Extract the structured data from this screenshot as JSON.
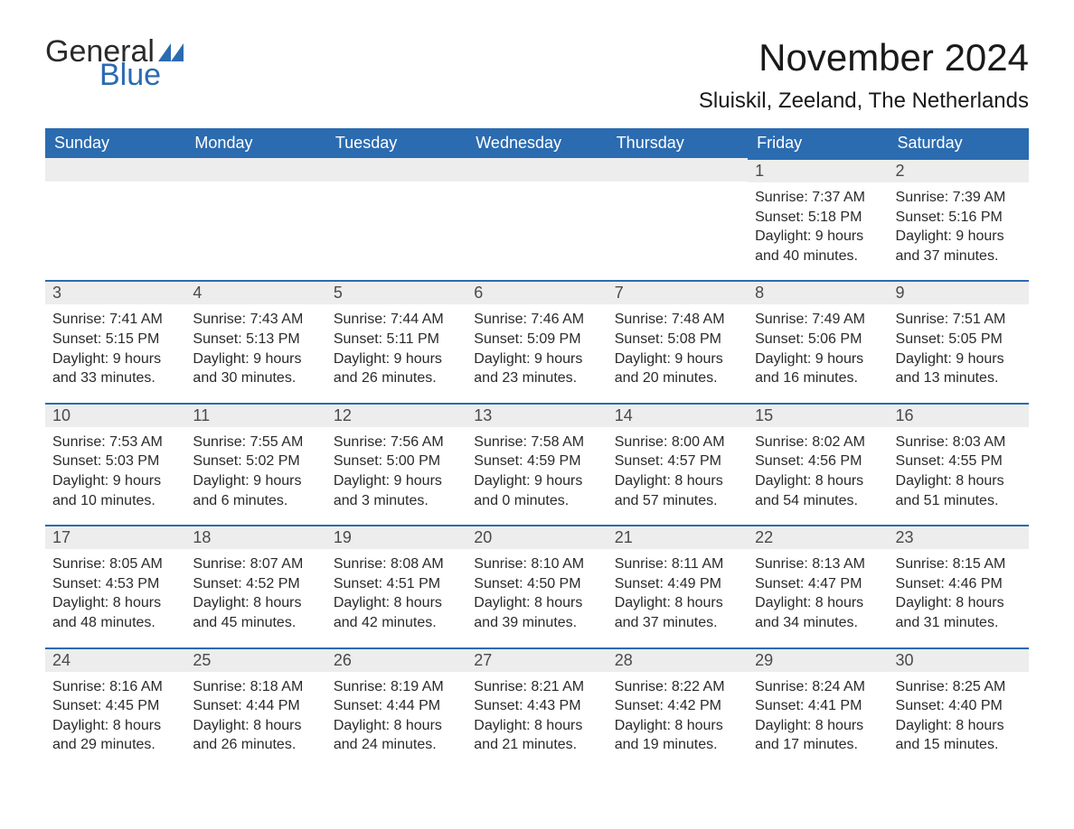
{
  "logo": {
    "text_general": "General",
    "text_blue": "Blue",
    "flag_color": "#2b6bb0"
  },
  "title": "November 2024",
  "location": "Sluiskil, Zeeland, The Netherlands",
  "header_bg": "#2b6bb0",
  "header_text_color": "#ffffff",
  "daynum_bg": "#ededed",
  "daynum_border": "#2b6bb0",
  "text_color": "#2a2a2a",
  "weekdays": [
    "Sunday",
    "Monday",
    "Tuesday",
    "Wednesday",
    "Thursday",
    "Friday",
    "Saturday"
  ],
  "weeks": [
    [
      null,
      null,
      null,
      null,
      null,
      {
        "n": "1",
        "sunrise": "Sunrise: 7:37 AM",
        "sunset": "Sunset: 5:18 PM",
        "dl1": "Daylight: 9 hours",
        "dl2": "and 40 minutes."
      },
      {
        "n": "2",
        "sunrise": "Sunrise: 7:39 AM",
        "sunset": "Sunset: 5:16 PM",
        "dl1": "Daylight: 9 hours",
        "dl2": "and 37 minutes."
      }
    ],
    [
      {
        "n": "3",
        "sunrise": "Sunrise: 7:41 AM",
        "sunset": "Sunset: 5:15 PM",
        "dl1": "Daylight: 9 hours",
        "dl2": "and 33 minutes."
      },
      {
        "n": "4",
        "sunrise": "Sunrise: 7:43 AM",
        "sunset": "Sunset: 5:13 PM",
        "dl1": "Daylight: 9 hours",
        "dl2": "and 30 minutes."
      },
      {
        "n": "5",
        "sunrise": "Sunrise: 7:44 AM",
        "sunset": "Sunset: 5:11 PM",
        "dl1": "Daylight: 9 hours",
        "dl2": "and 26 minutes."
      },
      {
        "n": "6",
        "sunrise": "Sunrise: 7:46 AM",
        "sunset": "Sunset: 5:09 PM",
        "dl1": "Daylight: 9 hours",
        "dl2": "and 23 minutes."
      },
      {
        "n": "7",
        "sunrise": "Sunrise: 7:48 AM",
        "sunset": "Sunset: 5:08 PM",
        "dl1": "Daylight: 9 hours",
        "dl2": "and 20 minutes."
      },
      {
        "n": "8",
        "sunrise": "Sunrise: 7:49 AM",
        "sunset": "Sunset: 5:06 PM",
        "dl1": "Daylight: 9 hours",
        "dl2": "and 16 minutes."
      },
      {
        "n": "9",
        "sunrise": "Sunrise: 7:51 AM",
        "sunset": "Sunset: 5:05 PM",
        "dl1": "Daylight: 9 hours",
        "dl2": "and 13 minutes."
      }
    ],
    [
      {
        "n": "10",
        "sunrise": "Sunrise: 7:53 AM",
        "sunset": "Sunset: 5:03 PM",
        "dl1": "Daylight: 9 hours",
        "dl2": "and 10 minutes."
      },
      {
        "n": "11",
        "sunrise": "Sunrise: 7:55 AM",
        "sunset": "Sunset: 5:02 PM",
        "dl1": "Daylight: 9 hours",
        "dl2": "and 6 minutes."
      },
      {
        "n": "12",
        "sunrise": "Sunrise: 7:56 AM",
        "sunset": "Sunset: 5:00 PM",
        "dl1": "Daylight: 9 hours",
        "dl2": "and 3 minutes."
      },
      {
        "n": "13",
        "sunrise": "Sunrise: 7:58 AM",
        "sunset": "Sunset: 4:59 PM",
        "dl1": "Daylight: 9 hours",
        "dl2": "and 0 minutes."
      },
      {
        "n": "14",
        "sunrise": "Sunrise: 8:00 AM",
        "sunset": "Sunset: 4:57 PM",
        "dl1": "Daylight: 8 hours",
        "dl2": "and 57 minutes."
      },
      {
        "n": "15",
        "sunrise": "Sunrise: 8:02 AM",
        "sunset": "Sunset: 4:56 PM",
        "dl1": "Daylight: 8 hours",
        "dl2": "and 54 minutes."
      },
      {
        "n": "16",
        "sunrise": "Sunrise: 8:03 AM",
        "sunset": "Sunset: 4:55 PM",
        "dl1": "Daylight: 8 hours",
        "dl2": "and 51 minutes."
      }
    ],
    [
      {
        "n": "17",
        "sunrise": "Sunrise: 8:05 AM",
        "sunset": "Sunset: 4:53 PM",
        "dl1": "Daylight: 8 hours",
        "dl2": "and 48 minutes."
      },
      {
        "n": "18",
        "sunrise": "Sunrise: 8:07 AM",
        "sunset": "Sunset: 4:52 PM",
        "dl1": "Daylight: 8 hours",
        "dl2": "and 45 minutes."
      },
      {
        "n": "19",
        "sunrise": "Sunrise: 8:08 AM",
        "sunset": "Sunset: 4:51 PM",
        "dl1": "Daylight: 8 hours",
        "dl2": "and 42 minutes."
      },
      {
        "n": "20",
        "sunrise": "Sunrise: 8:10 AM",
        "sunset": "Sunset: 4:50 PM",
        "dl1": "Daylight: 8 hours",
        "dl2": "and 39 minutes."
      },
      {
        "n": "21",
        "sunrise": "Sunrise: 8:11 AM",
        "sunset": "Sunset: 4:49 PM",
        "dl1": "Daylight: 8 hours",
        "dl2": "and 37 minutes."
      },
      {
        "n": "22",
        "sunrise": "Sunrise: 8:13 AM",
        "sunset": "Sunset: 4:47 PM",
        "dl1": "Daylight: 8 hours",
        "dl2": "and 34 minutes."
      },
      {
        "n": "23",
        "sunrise": "Sunrise: 8:15 AM",
        "sunset": "Sunset: 4:46 PM",
        "dl1": "Daylight: 8 hours",
        "dl2": "and 31 minutes."
      }
    ],
    [
      {
        "n": "24",
        "sunrise": "Sunrise: 8:16 AM",
        "sunset": "Sunset: 4:45 PM",
        "dl1": "Daylight: 8 hours",
        "dl2": "and 29 minutes."
      },
      {
        "n": "25",
        "sunrise": "Sunrise: 8:18 AM",
        "sunset": "Sunset: 4:44 PM",
        "dl1": "Daylight: 8 hours",
        "dl2": "and 26 minutes."
      },
      {
        "n": "26",
        "sunrise": "Sunrise: 8:19 AM",
        "sunset": "Sunset: 4:44 PM",
        "dl1": "Daylight: 8 hours",
        "dl2": "and 24 minutes."
      },
      {
        "n": "27",
        "sunrise": "Sunrise: 8:21 AM",
        "sunset": "Sunset: 4:43 PM",
        "dl1": "Daylight: 8 hours",
        "dl2": "and 21 minutes."
      },
      {
        "n": "28",
        "sunrise": "Sunrise: 8:22 AM",
        "sunset": "Sunset: 4:42 PM",
        "dl1": "Daylight: 8 hours",
        "dl2": "and 19 minutes."
      },
      {
        "n": "29",
        "sunrise": "Sunrise: 8:24 AM",
        "sunset": "Sunset: 4:41 PM",
        "dl1": "Daylight: 8 hours",
        "dl2": "and 17 minutes."
      },
      {
        "n": "30",
        "sunrise": "Sunrise: 8:25 AM",
        "sunset": "Sunset: 4:40 PM",
        "dl1": "Daylight: 8 hours",
        "dl2": "and 15 minutes."
      }
    ]
  ]
}
